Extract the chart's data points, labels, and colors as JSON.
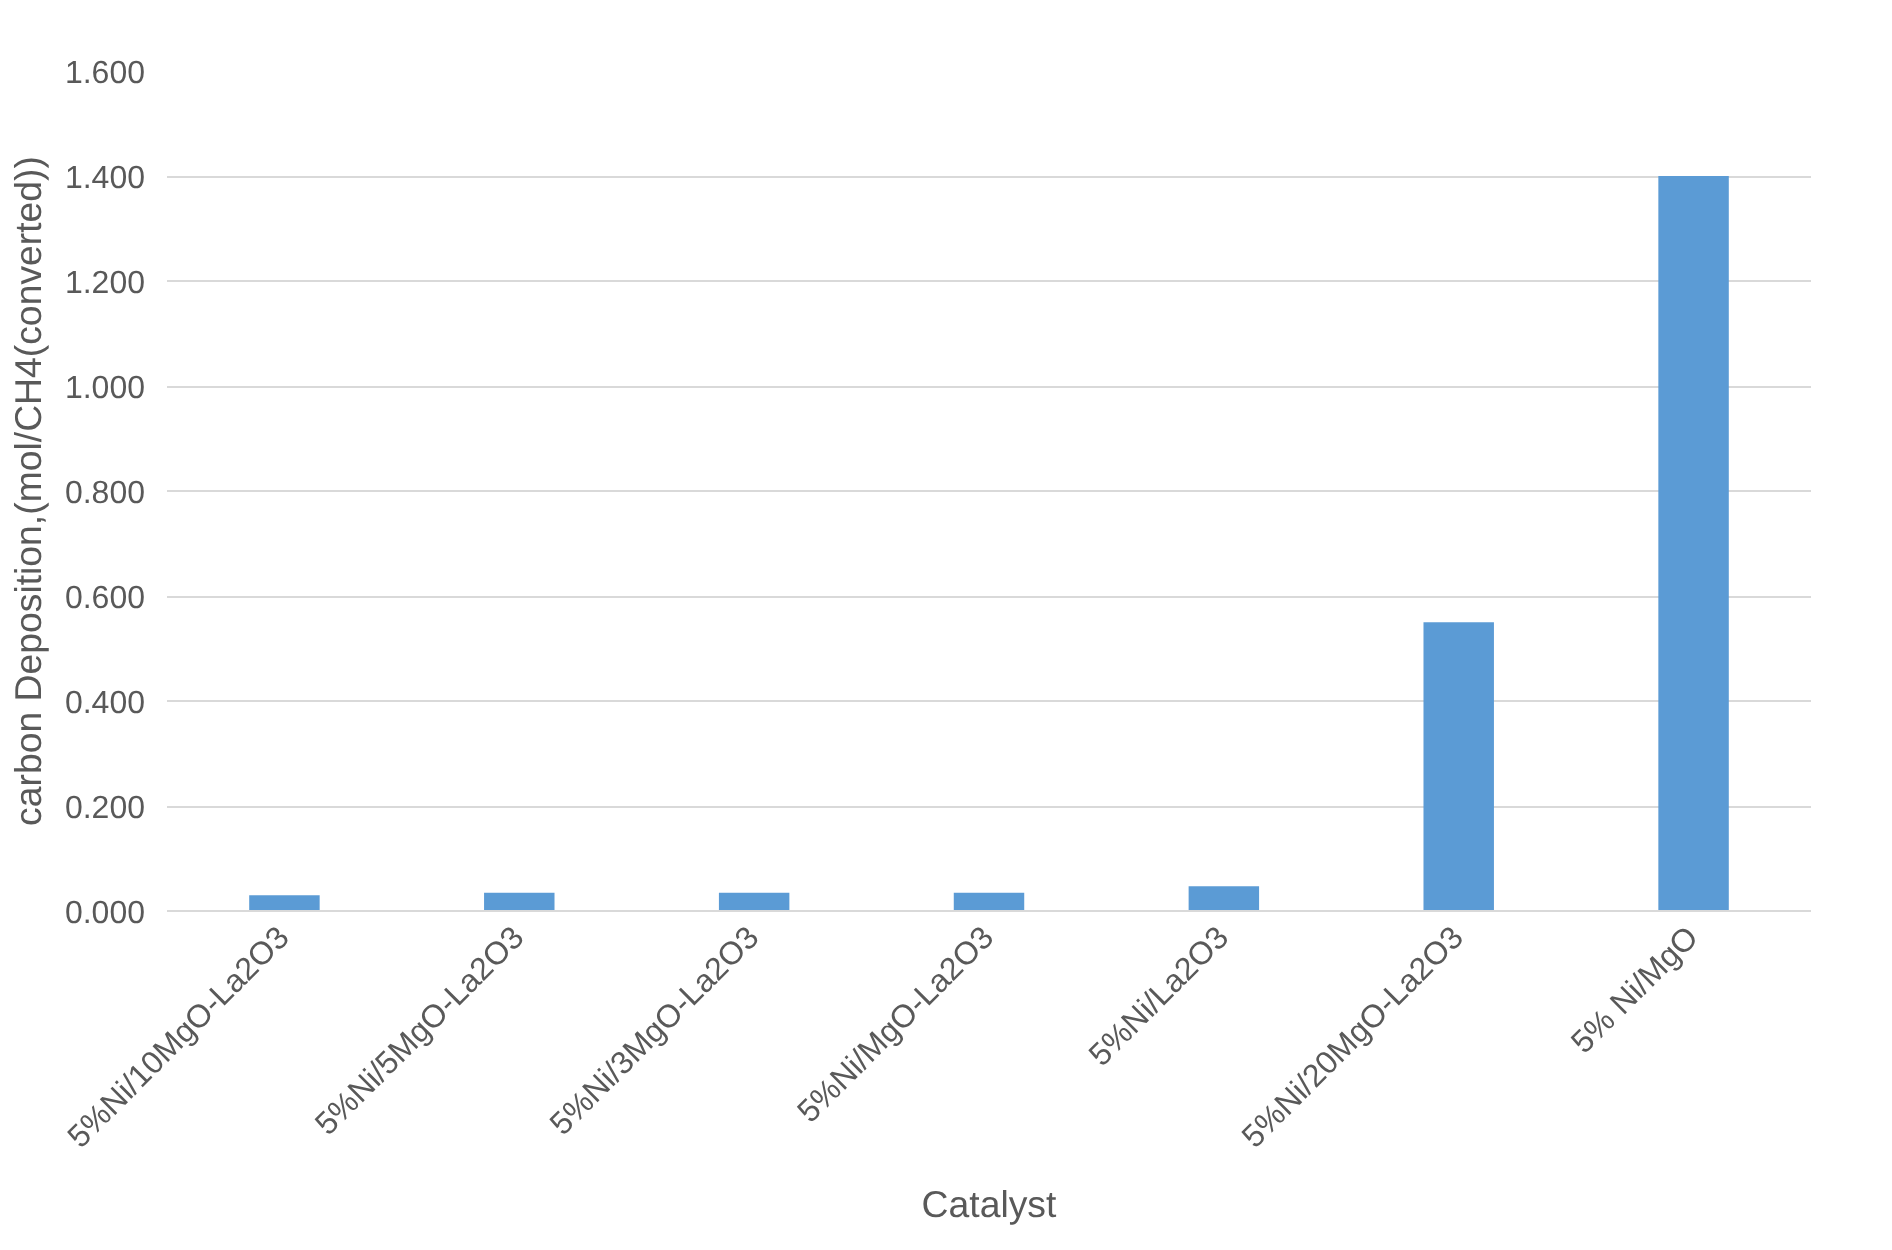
{
  "chart_data": {
    "type": "bar",
    "xlabel": "Catalyst",
    "ylabel": "carbon Deposition,(mol/CH4(converted))",
    "categories": [
      "5%Ni/10MgO-La2O3",
      "5%Ni/5MgO-La2O3",
      "5%Ni/3MgO-La2O3",
      "5%Ni/MgO-La2O3",
      "5%Ni/La2O3",
      "5%Ni/20MgO-La2O3",
      "5% Ni/MgO"
    ],
    "values": [
      0.03,
      0.035,
      0.035,
      0.035,
      0.047,
      0.55,
      1.4
    ],
    "color": "#5b9bd5",
    "ylim": [
      0,
      1.6
    ],
    "yticks": [
      {
        "value": 0,
        "label": "0.000"
      },
      {
        "value": 0.2,
        "label": "0.200"
      },
      {
        "value": 0.4,
        "label": "0.400"
      },
      {
        "value": 0.6,
        "label": "0.600"
      },
      {
        "value": 0.8,
        "label": "0.800"
      },
      {
        "value": 1.0,
        "label": "1.000"
      },
      {
        "value": 1.2,
        "label": "1.200"
      },
      {
        "value": 1.4,
        "label": "1.400"
      },
      {
        "value": 1.6,
        "label": "1.600"
      }
    ],
    "grid": "y"
  }
}
